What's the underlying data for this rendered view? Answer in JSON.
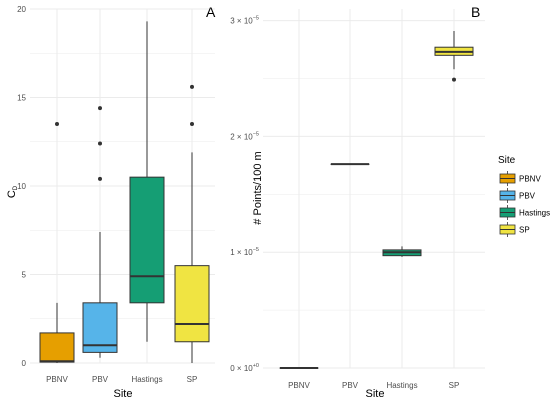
{
  "chart_data": [
    {
      "panel": "A",
      "type": "boxplot",
      "xlabel": "Site",
      "ylabel_main": "C",
      "ylabel_sub": "D",
      "categories": [
        "PBNV",
        "PBV",
        "Hastings",
        "SP"
      ],
      "ylim": [
        0,
        20
      ],
      "yticks": [
        0,
        5,
        10,
        15,
        20
      ],
      "ytick_labels": [
        "0",
        "5",
        "10",
        "15",
        "20"
      ],
      "boxes": [
        {
          "min": 0.0,
          "q1": 0.05,
          "median": 0.1,
          "q3": 1.7,
          "max": 3.4,
          "outliers": [
            13.5
          ]
        },
        {
          "min": 0.3,
          "q1": 0.6,
          "median": 1.0,
          "q3": 3.4,
          "max": 7.4,
          "outliers": [
            10.4,
            12.4,
            14.4
          ]
        },
        {
          "min": 1.2,
          "q1": 3.4,
          "median": 4.9,
          "q3": 10.5,
          "max": 19.3,
          "outliers": []
        },
        {
          "min": 0.0,
          "q1": 1.2,
          "median": 2.2,
          "q3": 5.5,
          "max": 11.9,
          "outliers": [
            13.5,
            15.6
          ]
        }
      ],
      "grid": true
    },
    {
      "panel": "B",
      "type": "boxplot",
      "xlabel": "Site",
      "ylabel": "# Points/100 m",
      "categories": [
        "PBNV",
        "PBV",
        "Hastings",
        "SP"
      ],
      "ylim": [
        0,
        3.1e-05
      ],
      "yticks": [
        0,
        1e-05,
        2e-05,
        3e-05
      ],
      "ytick_labels": [
        {
          "base": "0 × 10",
          "exp": "+0"
        },
        {
          "base": "1 × 10",
          "exp": "−5"
        },
        {
          "base": "2 × 10",
          "exp": "−5"
        },
        {
          "base": "3 × 10",
          "exp": "−5"
        }
      ],
      "boxes": [
        {
          "min": 0,
          "q1": 0,
          "median": 0,
          "q3": 0,
          "max": 0,
          "outliers": []
        },
        {
          "min": 1.76e-05,
          "q1": 1.76e-05,
          "median": 1.76e-05,
          "q3": 1.76e-05,
          "max": 1.76e-05,
          "outliers": []
        },
        {
          "min": 9.6e-06,
          "q1": 9.7e-06,
          "median": 1e-05,
          "q3": 1.02e-05,
          "max": 1.05e-05,
          "outliers": []
        },
        {
          "min": 2.58e-05,
          "q1": 2.7e-05,
          "median": 2.73e-05,
          "q3": 2.77e-05,
          "max": 2.91e-05,
          "outliers": [
            2.49e-05
          ]
        }
      ],
      "grid": true
    }
  ],
  "legend": {
    "title": "Site",
    "placement": "right",
    "items": [
      "PBNV",
      "PBV",
      "Hastings",
      "SP"
    ]
  },
  "colors": {
    "PBNV": "#E69F00",
    "PBV": "#56B4E9",
    "Hastings": "#159E74",
    "SP": "#F0E442",
    "grid": "#ebebeb",
    "line": "#333333"
  }
}
